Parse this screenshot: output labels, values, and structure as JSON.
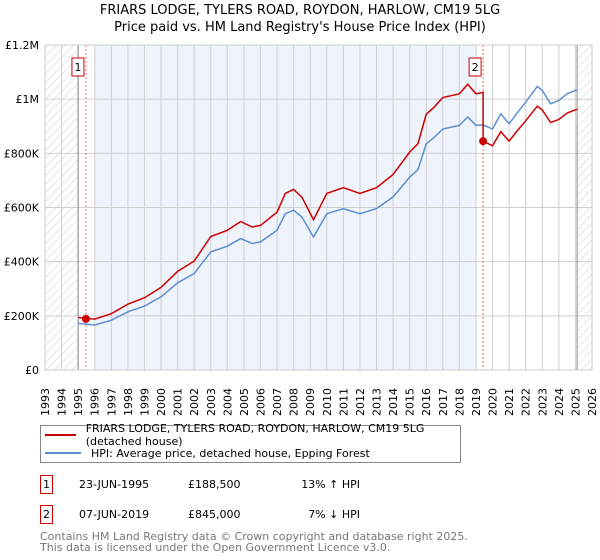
{
  "title": "FRIARS LODGE, TYLERS ROAD, ROYDON, HARLOW, CM19 5LG",
  "subtitle": "Price paid vs. HM Land Registry's House Price Index (HPI)",
  "chart_data": {
    "type": "line",
    "title": "FRIARS LODGE, TYLERS ROAD, ROYDON, HARLOW, CM19 5LG",
    "subtitle": "Price paid vs. HM Land Registry's House Price Index (HPI)",
    "xlim": [
      1993,
      2026
    ],
    "ylim": [
      0,
      1200000
    ],
    "x_ticks": [
      "1993",
      "1994",
      "1995",
      "1996",
      "1997",
      "1998",
      "1999",
      "2000",
      "2001",
      "2002",
      "2003",
      "2004",
      "2005",
      "2006",
      "2007",
      "2008",
      "2009",
      "2010",
      "2011",
      "2012",
      "2013",
      "2014",
      "2015",
      "2016",
      "2017",
      "2018",
      "2019",
      "2020",
      "2021",
      "2022",
      "2023",
      "2024",
      "2025",
      "2026"
    ],
    "y_ticks": [
      {
        "v": 0,
        "label": "£0"
      },
      {
        "v": 200000,
        "label": "£200K"
      },
      {
        "v": 400000,
        "label": "£400K"
      },
      {
        "v": 600000,
        "label": "£600K"
      },
      {
        "v": 800000,
        "label": "£800K"
      },
      {
        "v": 1000000,
        "label": "£1M"
      },
      {
        "v": 1200000,
        "label": "£1.2M"
      }
    ],
    "grid": true,
    "hatched_ranges": [
      [
        1993,
        1995
      ],
      [
        2025.1,
        2026
      ]
    ],
    "shaded_range": [
      1996,
      2019
    ],
    "series": [
      {
        "name": "FRIARS LODGE, TYLERS ROAD, ROYDON, HARLOW, CM19 5LG (detached house)",
        "color": "#cc0000",
        "x": [
          1995,
          1996,
          1997,
          1998,
          1999,
          2000,
          2001,
          2002,
          2003,
          2004,
          2004.8,
          2005.5,
          2006,
          2007,
          2007.5,
          2008,
          2008.5,
          2009.2,
          2010,
          2011,
          2012,
          2013,
          2014,
          2015,
          2015.5,
          2016,
          2016.5,
          2017,
          2018,
          2018.5,
          2019,
          2019.43,
          2019.43,
          2020,
          2020.5,
          2021,
          2021.5,
          2022,
          2022.7,
          2023,
          2023.5,
          2024,
          2024.5,
          2025.1
        ],
        "values": [
          194000,
          188000,
          208000,
          243000,
          267000,
          305000,
          364000,
          402000,
          493000,
          516000,
          548000,
          528000,
          534000,
          583000,
          652000,
          667000,
          638000,
          555000,
          652000,
          673000,
          652000,
          673000,
          722000,
          805000,
          836000,
          944000,
          972000,
          1006000,
          1020000,
          1055000,
          1020000,
          1025000,
          845000,
          828000,
          880000,
          845000,
          884000,
          920000,
          974000,
          960000,
          914000,
          925000,
          949000,
          963000
        ]
      },
      {
        "name": "HPI: Average price, detached house, Epping Forest",
        "color": "#5b8fd0",
        "x": [
          1995,
          1996,
          1997,
          1998,
          1999,
          2000,
          2001,
          2002,
          2003,
          2004,
          2004.8,
          2005.5,
          2006,
          2007,
          2007.5,
          2008,
          2008.5,
          2009.2,
          2010,
          2011,
          2012,
          2013,
          2014,
          2015,
          2015.5,
          2016,
          2016.5,
          2017,
          2018,
          2018.5,
          2019,
          2019.43,
          2020,
          2020.5,
          2021,
          2021.5,
          2022,
          2022.7,
          2023,
          2023.5,
          2024,
          2024.5,
          2025.1
        ],
        "values": [
          172000,
          166000,
          184000,
          215000,
          236000,
          270000,
          322000,
          356000,
          436000,
          457000,
          485000,
          467000,
          473000,
          516000,
          577000,
          590000,
          565000,
          491000,
          577000,
          596000,
          577000,
          596000,
          639000,
          712000,
          740000,
          835000,
          860000,
          890000,
          903000,
          934000,
          903000,
          905000,
          890000,
          946000,
          909000,
          950000,
          989000,
          1047000,
          1032000,
          983000,
          995000,
          1020000,
          1035000
        ]
      }
    ],
    "annotations": [
      {
        "label": "1",
        "x": 1995.47,
        "value": 188500
      },
      {
        "label": "2",
        "x": 2019.43,
        "value": 845000
      }
    ]
  },
  "legend": {
    "items": [
      {
        "label": "FRIARS LODGE, TYLERS ROAD, ROYDON, HARLOW, CM19 5LG (detached house)",
        "color": "#cc0000"
      },
      {
        "label": "HPI: Average price, detached house, Epping Forest",
        "color": "#5b8fd0"
      }
    ]
  },
  "sales": [
    {
      "num": "1",
      "date": "23-JUN-1995",
      "price": "£188,500",
      "hpi": "13% ↑ HPI"
    },
    {
      "num": "2",
      "date": "07-JUN-2019",
      "price": "£845,000",
      "hpi": "7% ↓ HPI"
    }
  ],
  "footer": {
    "line1": "Contains HM Land Registry data © Crown copyright and database right 2025.",
    "line2": "This data is licensed under the Open Government Licence v3.0."
  }
}
